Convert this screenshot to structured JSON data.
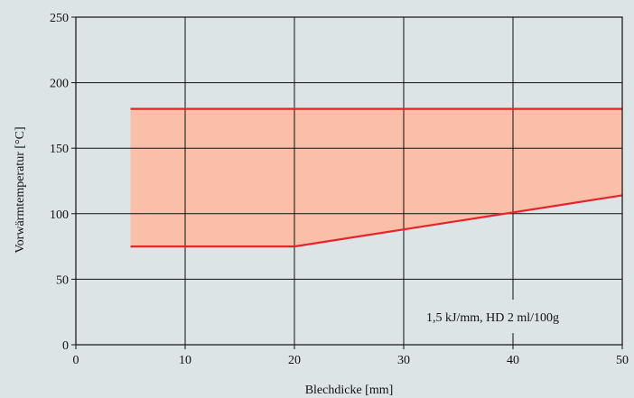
{
  "chart_data": {
    "type": "area",
    "xlabel": "Blechdicke [mm]",
    "ylabel": "Vorwärmtemperatur [°C]",
    "xlim": [
      0,
      50
    ],
    "ylim": [
      0,
      250
    ],
    "xticks": [
      0,
      10,
      20,
      30,
      40,
      50
    ],
    "yticks": [
      0,
      50,
      100,
      150,
      200,
      250
    ],
    "grid": true,
    "series": [
      {
        "name": "",
        "x": [
          5,
          50
        ],
        "y": [
          180,
          180
        ]
      },
      {
        "name": "",
        "x": [
          5,
          20,
          50
        ],
        "y": [
          75,
          75,
          114
        ]
      }
    ],
    "annotation": "1,5 kJ/mm, HD 2 ml/100g",
    "colors": {
      "background": "#dce4e6",
      "plot_background": "#dce4e6",
      "band_fill": "#f9bfa8",
      "boundary_line": "#e8232a",
      "grid": "#111111"
    }
  }
}
